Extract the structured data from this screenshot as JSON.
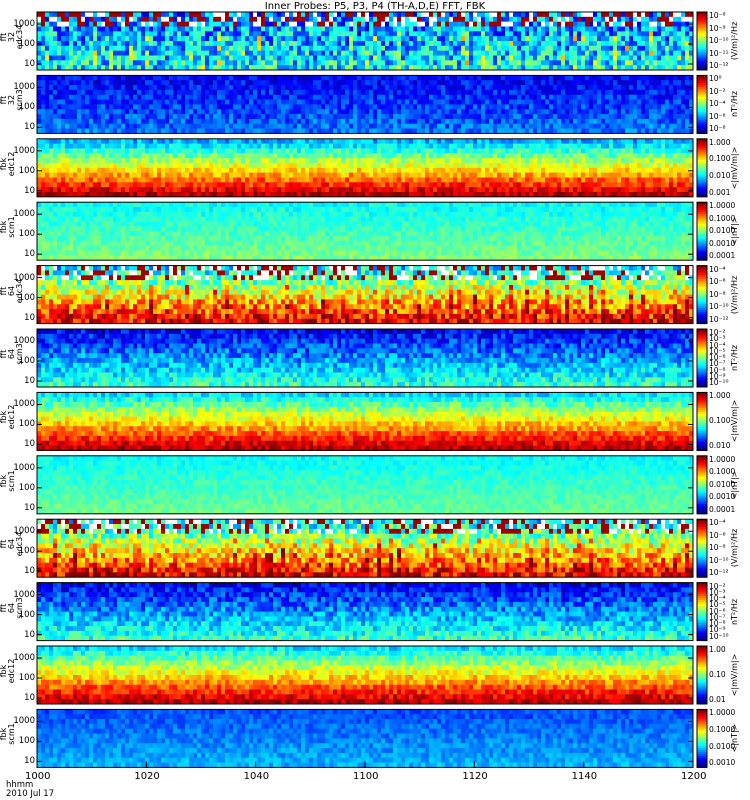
{
  "title": "Inner Probes: P5, P3, P4 (TH-A,D,E) FFT, FBK",
  "footer": {
    "line1": "hhmm",
    "line2": "2010 Jul 17"
  },
  "chart_data": {
    "type": "heatmap",
    "x_ticks": [
      "1000",
      "1020",
      "1040",
      "1100",
      "1120",
      "1140",
      "1200"
    ],
    "panels": [
      {
        "ylabel": [
          "tha",
          "fft",
          "32",
          "edc34"
        ],
        "yticks": [
          "1000",
          "100",
          "10"
        ],
        "ybottom": 5,
        "ytop": 4000,
        "cbar": [
          "10⁻⁸",
          "10⁻⁹",
          "10⁻¹⁰",
          "10⁻¹¹",
          "10⁻¹²"
        ],
        "cbar_label": "(V/m)²/Hz",
        "base": 0.25,
        "grad": 0.12,
        "var": 0.18,
        "stripes": 0.5
      },
      {
        "ylabel": [
          "tha",
          "fft",
          "32",
          "scm3"
        ],
        "yticks": [
          "1000",
          "100",
          "10"
        ],
        "ybottom": 5,
        "ytop": 4000,
        "cbar": [
          "10⁰",
          "10⁻²",
          "10⁻⁴",
          "10⁻⁶",
          "10⁻⁸"
        ],
        "cbar_label": "nT²/Hz",
        "base": 0.12,
        "grad": 0.12,
        "var": 0.08,
        "stripes": 0.0
      },
      {
        "ylabel": [
          "tha",
          "fbk",
          "edc12"
        ],
        "yticks": [
          "1000",
          "100",
          "10"
        ],
        "ybottom": 5,
        "ytop": 4000,
        "cbar": [
          "1.000",
          "0.100",
          "0.010",
          "0.001"
        ],
        "cbar_label": "<|mV/m|>",
        "base": 0.3,
        "grad": 0.65,
        "var": 0.08,
        "stripes": 0.0
      },
      {
        "ylabel": [
          "tha",
          "fbk",
          "scm1"
        ],
        "yticks": [
          "1000",
          "100",
          "10"
        ],
        "ybottom": 5,
        "ytop": 4000,
        "cbar": [
          "1.0000",
          "0.1000",
          "0.0100",
          "0.0010",
          "0.0001"
        ],
        "cbar_label": "<|nT|>",
        "base": 0.38,
        "grad": 0.12,
        "var": 0.05,
        "stripes": 0.0
      },
      {
        "ylabel": [
          "thd",
          "fft",
          "64",
          "edc34"
        ],
        "yticks": [
          "1000",
          "100",
          "10"
        ],
        "ybottom": 5,
        "ytop": 4000,
        "cbar": [
          "10⁻⁴",
          "10⁻⁶",
          "10⁻⁸",
          "10⁻¹⁰",
          "10⁻¹²"
        ],
        "cbar_label": "(V/m)²/Hz",
        "base": 0.35,
        "grad": 0.55,
        "var": 0.15,
        "stripes": 0.45
      },
      {
        "ylabel": [
          "thd",
          "fft",
          "64",
          "scm3"
        ],
        "yticks": [
          "1000",
          "100",
          "10"
        ],
        "ybottom": 5,
        "ytop": 4000,
        "cbar": [
          "10⁻²",
          "10⁻³",
          "10⁻⁴",
          "10⁻⁵",
          "10⁻⁶",
          "10⁻⁷",
          "10⁻⁸",
          "10⁻⁹",
          "10⁻¹⁰"
        ],
        "cbar_label": "nT²/Hz",
        "base": 0.12,
        "grad": 0.3,
        "var": 0.1,
        "stripes": 0.0
      },
      {
        "ylabel": [
          "thd",
          "fbk",
          "edc12"
        ],
        "yticks": [
          "1000",
          "100",
          "10"
        ],
        "ybottom": 5,
        "ytop": 4000,
        "cbar": [
          "1.000",
          "0.100",
          "0.010"
        ],
        "cbar_label": "<|mV/m|>",
        "base": 0.35,
        "grad": 0.6,
        "var": 0.08,
        "stripes": 0.0
      },
      {
        "ylabel": [
          "thd",
          "fbk",
          "scm1"
        ],
        "yticks": [
          "1000",
          "100",
          "10"
        ],
        "ybottom": 5,
        "ytop": 4000,
        "cbar": [
          "1.0000",
          "0.1000",
          "0.0100",
          "0.0010",
          "0.0001"
        ],
        "cbar_label": "<|nT|>",
        "base": 0.38,
        "grad": 0.1,
        "var": 0.04,
        "stripes": 0.0
      },
      {
        "ylabel": [
          "the",
          "fft",
          "64",
          "edc34"
        ],
        "yticks": [
          "1000",
          "100",
          "10"
        ],
        "ybottom": 5,
        "ytop": 4000,
        "cbar": [
          "10⁻⁴",
          "10⁻⁶",
          "10⁻⁸",
          "10⁻¹⁰",
          "10⁻¹²"
        ],
        "cbar_label": "(V/m)²/Hz",
        "base": 0.35,
        "grad": 0.55,
        "var": 0.15,
        "stripes": 0.45
      },
      {
        "ylabel": [
          "the",
          "fft",
          "64",
          "scm3"
        ],
        "yticks": [
          "1000",
          "100",
          "10"
        ],
        "ybottom": 5,
        "ytop": 4000,
        "cbar": [
          "10⁻²",
          "10⁻³",
          "10⁻⁴",
          "10⁻⁵",
          "10⁻⁶",
          "10⁻⁷",
          "10⁻⁸",
          "10⁻⁹",
          "10⁻¹⁰"
        ],
        "cbar_label": "nT²/Hz",
        "base": 0.12,
        "grad": 0.3,
        "var": 0.1,
        "stripes": 0.0
      },
      {
        "ylabel": [
          "the",
          "fbk",
          "edc12"
        ],
        "yticks": [
          "1000",
          "100",
          "10"
        ],
        "ybottom": 5,
        "ytop": 4000,
        "cbar": [
          "1.00",
          "0.10",
          "0.01"
        ],
        "cbar_label": "<|mV/m|>",
        "base": 0.35,
        "grad": 0.6,
        "var": 0.08,
        "stripes": 0.0
      },
      {
        "ylabel": [
          "the",
          "fbk",
          "scm1"
        ],
        "yticks": [
          "1000",
          "100",
          "10"
        ],
        "ybottom": 5,
        "ytop": 4000,
        "cbar": [
          "1.0000",
          "0.1000",
          "0.0100",
          "0.0010"
        ],
        "cbar_label": "<|nT|>",
        "base": 0.2,
        "grad": 0.1,
        "var": 0.05,
        "stripes": 0.0
      }
    ]
  }
}
